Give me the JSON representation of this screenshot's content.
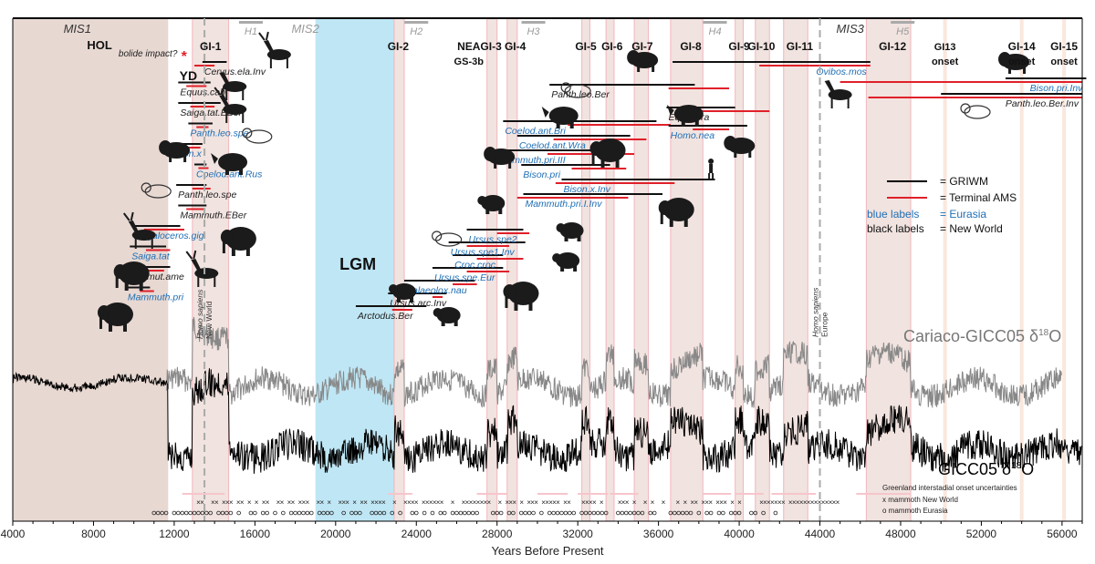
{
  "chart_data": {
    "type": "line",
    "xlabel": "Years Before Present",
    "x_range": [
      4000,
      57000
    ],
    "x_ticks": [
      "4000",
      "8000",
      "12000",
      "16000",
      "20000",
      "24000",
      "28000",
      "32000",
      "36000",
      "40000",
      "44000",
      "48000",
      "52000",
      "56000"
    ],
    "mis_labels": [
      {
        "text": "MIS1",
        "year": 7200
      },
      {
        "text": "MIS2",
        "year": 18500
      },
      {
        "text": "MIS3",
        "year": 45500
      }
    ],
    "heinrich_labels": [
      {
        "text": "H1",
        "year": 15800
      },
      {
        "text": "H2",
        "year": 24000
      },
      {
        "text": "H3",
        "year": 29800
      },
      {
        "text": "H4",
        "year": 38800
      },
      {
        "text": "H5",
        "year": 48100
      }
    ],
    "period_labels": [
      {
        "text": "HOL",
        "year": 8300
      },
      {
        "text": "YD",
        "year": 12700
      },
      {
        "text": "LGM",
        "year": 21100
      }
    ],
    "event_labels": [
      {
        "text": "bolide impact?",
        "year": 10700
      }
    ],
    "shaded_periods": [
      {
        "name": "Holocene",
        "start": 4000,
        "end": 11700,
        "color": "#e8d8d2"
      },
      {
        "name": "Last Glacial Maximum",
        "start": 19000,
        "end": 23000,
        "color": "#bfe6f4"
      },
      {
        "name": "GI-1",
        "start": 12900,
        "end": 14700,
        "color": "#f1e3df"
      },
      {
        "name": "GI-2",
        "start": 22900,
        "end": 23400,
        "color": "#f1e3df"
      },
      {
        "name": "GI-3",
        "start": 27500,
        "end": 28000,
        "color": "#f1e3df"
      },
      {
        "name": "GI-4",
        "start": 28500,
        "end": 29000,
        "color": "#f1e3df"
      },
      {
        "name": "GI-5",
        "start": 32200,
        "end": 32600,
        "color": "#f1e3df"
      },
      {
        "name": "GI-6",
        "start": 33400,
        "end": 33800,
        "color": "#f1e3df"
      },
      {
        "name": "GI-7",
        "start": 34800,
        "end": 35500,
        "color": "#f1e3df"
      },
      {
        "name": "GI-8",
        "start": 36600,
        "end": 38200,
        "color": "#f1e3df"
      },
      {
        "name": "GI-9",
        "start": 39800,
        "end": 40200,
        "color": "#f1e3df"
      },
      {
        "name": "GI-10",
        "start": 40800,
        "end": 41500,
        "color": "#f1e3df"
      },
      {
        "name": "GI-11",
        "start": 42200,
        "end": 43400,
        "color": "#f1e3df"
      },
      {
        "name": "GI-12",
        "start": 46300,
        "end": 48500,
        "color": "#f1e3df"
      }
    ],
    "gi_labels": [
      {
        "text": "GI-1",
        "year": 13800,
        "line2": ""
      },
      {
        "text": "GI-2",
        "year": 23100,
        "line2": ""
      },
      {
        "text": "NEA",
        "year": 26600,
        "line2": "GS-3b"
      },
      {
        "text": "GI-3",
        "year": 27700,
        "line2": ""
      },
      {
        "text": "GI-4",
        "year": 28900,
        "line2": ""
      },
      {
        "text": "GI-5",
        "year": 32400,
        "line2": ""
      },
      {
        "text": "GI-6",
        "year": 33700,
        "line2": ""
      },
      {
        "text": "GI-7",
        "year": 35200,
        "line2": ""
      },
      {
        "text": "GI-8",
        "year": 37600,
        "line2": ""
      },
      {
        "text": "GI-9",
        "year": 40000,
        "line2": ""
      },
      {
        "text": "GI-10",
        "year": 41100,
        "line2": ""
      },
      {
        "text": "GI-11",
        "year": 43000,
        "line2": ""
      },
      {
        "text": "GI-12",
        "year": 47600,
        "line2": ""
      },
      {
        "text": "GI13",
        "year": 50200,
        "line2": "onset"
      },
      {
        "text": "GI-14",
        "year": 54000,
        "line2": "onset"
      },
      {
        "text": "GI-15",
        "year": 56100,
        "line2": "onset"
      }
    ],
    "taxa": [
      {
        "label": "Cervus.ela.Inv",
        "region": "New World",
        "griwm": [
          13400,
          14600
        ],
        "ams": [
          13000,
          14000
        ]
      },
      {
        "label": "Equus.cab",
        "region": "New World",
        "griwm": [
          12200,
          13800
        ],
        "ams": [
          12600,
          13600
        ]
      },
      {
        "label": "Saiga.tat.EBer",
        "region": "New World",
        "griwm": [
          12200,
          14300
        ],
        "ams": [
          12800,
          14000
        ]
      },
      {
        "label": "Panth.leo.spe",
        "region": "Eurasia",
        "griwm": [
          12700,
          13900
        ],
        "ams": [
          13100,
          13700
        ]
      },
      {
        "label": "Bison.x",
        "region": "Eurasia",
        "griwm": [
          11700,
          13400
        ],
        "ams": [
          12700,
          13300
        ]
      },
      {
        "label": "Coelod.ant.Rus",
        "region": "Eurasia",
        "griwm": [
          13000,
          13600
        ],
        "ams": [
          13200,
          13700
        ]
      },
      {
        "label": "Panth.leo.spe",
        "region": "New World",
        "griwm": [
          12100,
          13600
        ],
        "ams": [
          12900,
          13800
        ]
      },
      {
        "label": "Mammuth.EBer",
        "region": "New World",
        "griwm": [
          12200,
          13600
        ],
        "ams": [
          12600,
          13500
        ]
      },
      {
        "label": "Megaloceros.gig",
        "region": "Eurasia",
        "griwm": [
          9900,
          12300
        ],
        "ams": [
          10500,
          12500
        ]
      },
      {
        "label": "Saiga.tat",
        "region": "Eurasia",
        "griwm": [
          9800,
          11600
        ],
        "ams": [
          10600,
          11800
        ]
      },
      {
        "label": "Mammut.ame",
        "region": "New World",
        "griwm": [
          9500,
          11800
        ],
        "ams": [
          10100,
          11500
        ]
      },
      {
        "label": "Mammuth.pri",
        "region": "Eurasia",
        "griwm": [
          9600,
          10800
        ],
        "ams": [
          10300,
          11000
        ]
      },
      {
        "label": "Arctodus.Ber",
        "region": "New World",
        "griwm": [
          21000,
          24500
        ],
        "ams": [
          22800,
          23800
        ]
      },
      {
        "label": "Ursus.arc.Inv",
        "region": "New World",
        "griwm": [
          22600,
          25500
        ],
        "ams": [
          24800,
          25300
        ]
      },
      {
        "label": "Palaeolox.nau",
        "region": "Eurasia",
        "griwm": [
          23400,
          26900
        ],
        "ams": [
          25800,
          27000
        ]
      },
      {
        "label": "Ursus.spe.Eur",
        "region": "Eurasia",
        "griwm": [
          24800,
          28300
        ],
        "ams": [
          26500,
          28600
        ]
      },
      {
        "label": "Croc.croc",
        "region": "Eurasia",
        "griwm": [
          25800,
          28300
        ],
        "ams": [
          27000,
          29300
        ]
      },
      {
        "label": "Ursus.spe1.Inv",
        "region": "Eurasia",
        "griwm": [
          25600,
          29400
        ],
        "ams": [
          26500,
          28600
        ]
      },
      {
        "label": "Ursus.spe2",
        "region": "Eurasia",
        "griwm": [
          26500,
          29300
        ],
        "ams": [
          28000,
          29600
        ]
      },
      {
        "label": "Mammuth.pri.I.Inv",
        "region": "Eurasia",
        "griwm": [
          29300,
          36200
        ],
        "ams": [
          29000,
          34500
        ]
      },
      {
        "label": "Bison.x.Inv",
        "region": "Eurasia",
        "griwm": [
          31200,
          38800
        ],
        "ams": [
          30900,
          36800
        ]
      },
      {
        "label": "Bison.pri",
        "region": "Eurasia",
        "griwm": [
          29200,
          33600
        ],
        "ams": [
          31700,
          34400
        ]
      },
      {
        "label": "Mammuth.pri.III",
        "region": "Eurasia",
        "griwm": [
          28000,
          32800
        ],
        "ams": [
          30500,
          34800
        ]
      },
      {
        "label": "Coelod.ant.Wra",
        "region": "Eurasia",
        "griwm": [
          29000,
          34600
        ],
        "ams": [
          30800,
          35400
        ]
      },
      {
        "label": "Coelod.ant.Bri",
        "region": "Eurasia",
        "griwm": [
          28300,
          35900
        ],
        "ams": [
          31500,
          36600
        ]
      },
      {
        "label": "Homo.nea",
        "region": "Eurasia",
        "griwm": [
          36500,
          40400
        ],
        "ams": [
          37700,
          39500
        ]
      },
      {
        "label": "Equus.fra",
        "region": "New World",
        "griwm": [
          36400,
          39800
        ],
        "ams": [
          37000,
          41500
        ]
      },
      {
        "label": "Panth.leo.Ber",
        "region": "New World",
        "griwm": [
          30600,
          37800
        ],
        "ams": [
          36500,
          39500
        ]
      },
      {
        "label": "Ovibos.mos",
        "region": "Eurasia",
        "griwm": [
          36700,
          46500
        ],
        "ams": [
          41000,
          46500
        ]
      },
      {
        "label": "Bison.pri.Inv",
        "region": "Eurasia",
        "griwm": [
          53200,
          57200
        ],
        "ams": [
          45000,
          57000
        ]
      },
      {
        "label": "Panth.leo.Ber.Inv",
        "region": "New World",
        "griwm": [
          50000,
          57000
        ],
        "ams": [
          46400,
          57000
        ]
      }
    ],
    "series": [
      {
        "name": "Cariaco-GICC05 δ18O",
        "color": "#888888",
        "start": 11600,
        "end": 56000,
        "label": "Cariaco-GICC05 δ",
        "sup": "18",
        "tail": "O"
      },
      {
        "name": "GICC05 δ18O",
        "color": "#000000",
        "start": 4000,
        "end": 57000,
        "label": "GICC05 δ",
        "sup": "18",
        "tail": "O"
      }
    ],
    "vertical_markers": [
      {
        "text": "Homo sapiens",
        "sub": "New World",
        "year": 13500
      },
      {
        "text": "Homo sapiens",
        "sub": "Europe",
        "year": 44000
      }
    ],
    "legend": {
      "position": "right",
      "griwm": "= GRIWM",
      "ams": "= Terminal AMS",
      "blue": "blue labels",
      "blue_eq": "= Eurasia",
      "black": "black labels",
      "black_eq": "= New World"
    },
    "bottom_legend": {
      "uncertainty": "Greenland interstadial onset uncertainties",
      "mammoth_nw": "x mammoth New World",
      "mammoth_eu": "o mammoth Eurasia"
    },
    "colors": {
      "eurasia": "#1f6fb5",
      "newworld": "#222222",
      "ams": "#e0202a",
      "griwm": "#111111",
      "lgm": "#bfe6f4",
      "hol": "#e8d8d2",
      "gi": "#f1e3df",
      "unc": "#f7c5cc"
    }
  }
}
